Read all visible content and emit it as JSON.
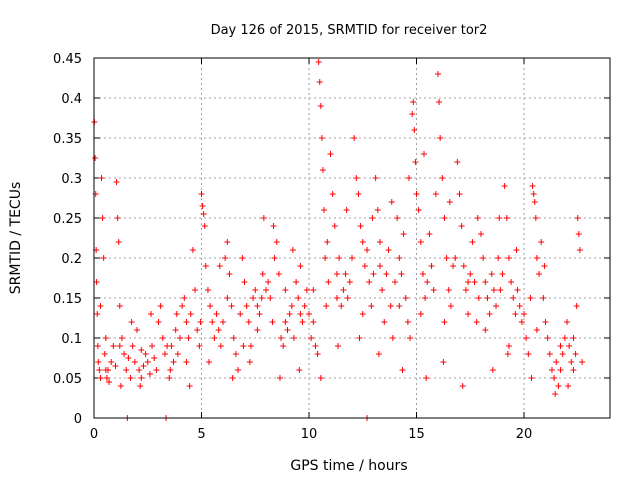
{
  "chart_data": {
    "type": "scatter",
    "title": "Day 126 of 2015, SRMTID for receiver tor2",
    "xlabel": "GPS time / hours",
    "ylabel": "SRMTID / TECUs",
    "xlim": [
      0,
      24
    ],
    "ylim": [
      0,
      0.45
    ],
    "x_ticks": [
      0,
      5,
      10,
      15,
      20
    ],
    "y_ticks": [
      0,
      0.05,
      0.1,
      0.15,
      0.2,
      0.25,
      0.3,
      0.35,
      0.4,
      0.45
    ],
    "grid": true,
    "marker": "+",
    "series_color": "#ff0000",
    "series": [
      {
        "name": "SRMTID",
        "points": [
          [
            0.02,
            0.37
          ],
          [
            0.05,
            0.325
          ],
          [
            0.08,
            0.28
          ],
          [
            0.1,
            0.21
          ],
          [
            0.12,
            0.17
          ],
          [
            0.15,
            0.13
          ],
          [
            0.18,
            0.09
          ],
          [
            0.2,
            0.07
          ],
          [
            0.25,
            0.06
          ],
          [
            0.3,
            0.05
          ],
          [
            0.35,
            0.3
          ],
          [
            0.4,
            0.25
          ],
          [
            0.45,
            0.2
          ],
          [
            0.5,
            0.08
          ],
          [
            0.55,
            0.06
          ],
          [
            0.6,
            0.05
          ],
          [
            0.7,
            0.045
          ],
          [
            0.8,
            0.07
          ],
          [
            0.9,
            0.09
          ],
          [
            1.0,
            0.065
          ],
          [
            1.05,
            0.295
          ],
          [
            1.1,
            0.25
          ],
          [
            1.15,
            0.22
          ],
          [
            1.2,
            0.14
          ],
          [
            1.3,
            0.1
          ],
          [
            1.4,
            0.08
          ],
          [
            1.5,
            0.06
          ],
          [
            1.6,
            0.075
          ],
          [
            1.7,
            0.05
          ],
          [
            1.8,
            0.09
          ],
          [
            1.9,
            0.07
          ],
          [
            2.0,
            0.11
          ],
          [
            2.1,
            0.06
          ],
          [
            2.2,
            0.085
          ],
          [
            2.3,
            0.065
          ],
          [
            2.4,
            0.08
          ],
          [
            2.5,
            0.07
          ],
          [
            2.6,
            0.055
          ],
          [
            2.7,
            0.09
          ],
          [
            2.8,
            0.075
          ],
          [
            2.9,
            0.06
          ],
          [
            3.0,
            0.12
          ],
          [
            3.1,
            0.14
          ],
          [
            3.2,
            0.1
          ],
          [
            3.3,
            0.08
          ],
          [
            3.5,
            0.05
          ],
          [
            3.6,
            0.09
          ],
          [
            3.7,
            0.07
          ],
          [
            3.8,
            0.11
          ],
          [
            3.9,
            0.08
          ],
          [
            4.0,
            0.1
          ],
          [
            4.1,
            0.14
          ],
          [
            4.2,
            0.15
          ],
          [
            4.3,
            0.12
          ],
          [
            4.4,
            0.1
          ],
          [
            4.5,
            0.13
          ],
          [
            4.6,
            0.21
          ],
          [
            4.7,
            0.16
          ],
          [
            4.8,
            0.11
          ],
          [
            4.9,
            0.09
          ],
          [
            5.0,
            0.28
          ],
          [
            5.05,
            0.265
          ],
          [
            5.1,
            0.255
          ],
          [
            5.15,
            0.24
          ],
          [
            5.2,
            0.19
          ],
          [
            5.3,
            0.16
          ],
          [
            5.4,
            0.14
          ],
          [
            5.5,
            0.12
          ],
          [
            5.6,
            0.1
          ],
          [
            5.7,
            0.13
          ],
          [
            5.8,
            0.11
          ],
          [
            5.9,
            0.09
          ],
          [
            6.0,
            0.12
          ],
          [
            6.1,
            0.2
          ],
          [
            6.2,
            0.22
          ],
          [
            6.3,
            0.18
          ],
          [
            6.4,
            0.14
          ],
          [
            6.5,
            0.1
          ],
          [
            6.6,
            0.08
          ],
          [
            6.7,
            0.06
          ],
          [
            6.8,
            0.13
          ],
          [
            6.9,
            0.2
          ],
          [
            7.0,
            0.17
          ],
          [
            7.1,
            0.14
          ],
          [
            7.2,
            0.12
          ],
          [
            7.3,
            0.09
          ],
          [
            7.4,
            0.15
          ],
          [
            7.5,
            0.16
          ],
          [
            7.6,
            0.14
          ],
          [
            7.7,
            0.13
          ],
          [
            7.8,
            0.15
          ],
          [
            7.9,
            0.25
          ],
          [
            8.0,
            0.16
          ],
          [
            8.1,
            0.17
          ],
          [
            8.2,
            0.15
          ],
          [
            8.3,
            0.12
          ],
          [
            8.4,
            0.2
          ],
          [
            8.5,
            0.22
          ],
          [
            8.6,
            0.18
          ],
          [
            8.7,
            0.1
          ],
          [
            8.8,
            0.09
          ],
          [
            8.9,
            0.12
          ],
          [
            9.0,
            0.11
          ],
          [
            9.1,
            0.13
          ],
          [
            9.2,
            0.14
          ],
          [
            9.3,
            0.1
          ],
          [
            9.4,
            0.17
          ],
          [
            9.5,
            0.15
          ],
          [
            9.6,
            0.13
          ],
          [
            9.7,
            0.12
          ],
          [
            9.8,
            0.14
          ],
          [
            9.9,
            0.16
          ],
          [
            10.0,
            0.13
          ],
          [
            10.1,
            0.1
          ],
          [
            10.2,
            0.12
          ],
          [
            10.3,
            0.09
          ],
          [
            10.4,
            0.08
          ],
          [
            10.45,
            0.445
          ],
          [
            10.5,
            0.42
          ],
          [
            10.55,
            0.39
          ],
          [
            10.6,
            0.35
          ],
          [
            10.65,
            0.31
          ],
          [
            10.7,
            0.26
          ],
          [
            10.75,
            0.2
          ],
          [
            10.8,
            0.14
          ],
          [
            10.9,
            0.17
          ],
          [
            11.0,
            0.33
          ],
          [
            11.1,
            0.28
          ],
          [
            11.2,
            0.24
          ],
          [
            11.3,
            0.18
          ],
          [
            11.4,
            0.2
          ],
          [
            11.5,
            0.14
          ],
          [
            11.6,
            0.16
          ],
          [
            11.7,
            0.18
          ],
          [
            11.8,
            0.15
          ],
          [
            11.9,
            0.17
          ],
          [
            12.0,
            0.2
          ],
          [
            12.1,
            0.35
          ],
          [
            12.2,
            0.3
          ],
          [
            12.3,
            0.28
          ],
          [
            12.4,
            0.24
          ],
          [
            12.5,
            0.22
          ],
          [
            12.6,
            0.19
          ],
          [
            12.7,
            0.21
          ],
          [
            12.8,
            0.17
          ],
          [
            12.9,
            0.14
          ],
          [
            13.0,
            0.18
          ],
          [
            13.1,
            0.3
          ],
          [
            13.2,
            0.26
          ],
          [
            13.3,
            0.22
          ],
          [
            13.4,
            0.16
          ],
          [
            13.5,
            0.12
          ],
          [
            13.6,
            0.18
          ],
          [
            13.7,
            0.21
          ],
          [
            13.8,
            0.14
          ],
          [
            13.9,
            0.1
          ],
          [
            14.0,
            0.17
          ],
          [
            14.1,
            0.25
          ],
          [
            14.2,
            0.2
          ],
          [
            14.3,
            0.18
          ],
          [
            14.4,
            0.23
          ],
          [
            14.5,
            0.15
          ],
          [
            14.6,
            0.12
          ],
          [
            14.7,
            0.1
          ],
          [
            14.8,
            0.38
          ],
          [
            14.85,
            0.395
          ],
          [
            14.9,
            0.36
          ],
          [
            14.95,
            0.32
          ],
          [
            15.0,
            0.28
          ],
          [
            15.1,
            0.26
          ],
          [
            15.2,
            0.22
          ],
          [
            15.3,
            0.18
          ],
          [
            15.4,
            0.15
          ],
          [
            15.5,
            0.17
          ],
          [
            15.6,
            0.23
          ],
          [
            15.7,
            0.19
          ],
          [
            15.8,
            0.16
          ],
          [
            15.9,
            0.28
          ],
          [
            16.0,
            0.43
          ],
          [
            16.05,
            0.395
          ],
          [
            16.1,
            0.35
          ],
          [
            16.2,
            0.3
          ],
          [
            16.3,
            0.25
          ],
          [
            16.4,
            0.2
          ],
          [
            16.5,
            0.16
          ],
          [
            16.6,
            0.14
          ],
          [
            16.7,
            0.19
          ],
          [
            16.8,
            0.2
          ],
          [
            16.9,
            0.32
          ],
          [
            17.0,
            0.28
          ],
          [
            17.1,
            0.24
          ],
          [
            17.2,
            0.19
          ],
          [
            17.3,
            0.16
          ],
          [
            17.4,
            0.13
          ],
          [
            17.5,
            0.18
          ],
          [
            17.6,
            0.22
          ],
          [
            17.7,
            0.17
          ],
          [
            17.8,
            0.12
          ],
          [
            17.9,
            0.15
          ],
          [
            18.0,
            0.23
          ],
          [
            18.1,
            0.2
          ],
          [
            18.2,
            0.17
          ],
          [
            18.3,
            0.15
          ],
          [
            18.4,
            0.13
          ],
          [
            18.5,
            0.18
          ],
          [
            18.6,
            0.16
          ],
          [
            18.7,
            0.14
          ],
          [
            18.8,
            0.2
          ],
          [
            18.9,
            0.16
          ],
          [
            19.0,
            0.18
          ],
          [
            19.1,
            0.29
          ],
          [
            19.2,
            0.25
          ],
          [
            19.3,
            0.2
          ],
          [
            19.4,
            0.17
          ],
          [
            19.5,
            0.15
          ],
          [
            19.6,
            0.13
          ],
          [
            19.7,
            0.16
          ],
          [
            19.8,
            0.14
          ],
          [
            19.9,
            0.12
          ],
          [
            20.0,
            0.13
          ],
          [
            20.1,
            0.1
          ],
          [
            20.2,
            0.08
          ],
          [
            20.3,
            0.15
          ],
          [
            20.4,
            0.29
          ],
          [
            20.45,
            0.28
          ],
          [
            20.5,
            0.27
          ],
          [
            20.55,
            0.25
          ],
          [
            20.6,
            0.2
          ],
          [
            20.7,
            0.18
          ],
          [
            20.8,
            0.22
          ],
          [
            20.9,
            0.15
          ],
          [
            21.0,
            0.12
          ],
          [
            21.1,
            0.1
          ],
          [
            21.2,
            0.08
          ],
          [
            21.3,
            0.06
          ],
          [
            21.4,
            0.05
          ],
          [
            21.5,
            0.07
          ],
          [
            21.6,
            0.04
          ],
          [
            21.7,
            0.06
          ],
          [
            21.8,
            0.08
          ],
          [
            21.9,
            0.1
          ],
          [
            22.0,
            0.12
          ],
          [
            22.1,
            0.09
          ],
          [
            22.2,
            0.07
          ],
          [
            22.3,
            0.1
          ],
          [
            22.4,
            0.08
          ],
          [
            22.5,
            0.25
          ],
          [
            22.55,
            0.23
          ],
          [
            22.6,
            0.21
          ],
          [
            22.7,
            0.07
          ],
          [
            0.3,
            0.14
          ],
          [
            1.2,
            0.09
          ],
          [
            2.2,
            0.05
          ],
          [
            3.4,
            0.09
          ],
          [
            4.3,
            0.07
          ],
          [
            6.2,
            0.15
          ],
          [
            7.6,
            0.11
          ],
          [
            8.9,
            0.16
          ],
          [
            9.6,
            0.19
          ],
          [
            10.2,
            0.16
          ],
          [
            11.3,
            0.15
          ],
          [
            12.5,
            0.13
          ],
          [
            13.3,
            0.19
          ],
          [
            14.2,
            0.14
          ],
          [
            15.2,
            0.13
          ],
          [
            16.3,
            0.12
          ],
          [
            17.4,
            0.17
          ],
          [
            18.2,
            0.11
          ],
          [
            19.3,
            0.09
          ],
          [
            20.6,
            0.11
          ],
          [
            21.7,
            0.09
          ],
          [
            22.3,
            0.06
          ],
          [
            1.55,
            0.0
          ],
          [
            3.35,
            0.0
          ],
          [
            12.7,
            0.0
          ],
          [
            0.65,
            0.06
          ],
          [
            1.25,
            0.04
          ],
          [
            2.15,
            0.04
          ],
          [
            3.55,
            0.06
          ],
          [
            4.45,
            0.04
          ],
          [
            5.35,
            0.07
          ],
          [
            6.45,
            0.05
          ],
          [
            7.25,
            0.07
          ],
          [
            8.65,
            0.05
          ],
          [
            9.55,
            0.06
          ],
          [
            10.55,
            0.05
          ],
          [
            11.35,
            0.09
          ],
          [
            12.35,
            0.1
          ],
          [
            13.25,
            0.08
          ],
          [
            14.35,
            0.06
          ],
          [
            15.45,
            0.05
          ],
          [
            16.25,
            0.07
          ],
          [
            17.15,
            0.04
          ],
          [
            18.55,
            0.06
          ],
          [
            19.25,
            0.08
          ],
          [
            20.35,
            0.05
          ],
          [
            21.45,
            0.03
          ],
          [
            22.05,
            0.04
          ],
          [
            0.55,
            0.1
          ],
          [
            1.75,
            0.12
          ],
          [
            2.65,
            0.13
          ],
          [
            3.85,
            0.13
          ],
          [
            4.95,
            0.12
          ],
          [
            5.85,
            0.19
          ],
          [
            6.95,
            0.09
          ],
          [
            7.85,
            0.18
          ],
          [
            8.35,
            0.24
          ],
          [
            9.25,
            0.21
          ],
          [
            10.85,
            0.22
          ],
          [
            11.75,
            0.26
          ],
          [
            12.95,
            0.25
          ],
          [
            13.85,
            0.27
          ],
          [
            14.65,
            0.3
          ],
          [
            15.35,
            0.33
          ],
          [
            16.55,
            0.27
          ],
          [
            17.85,
            0.25
          ],
          [
            18.85,
            0.25
          ],
          [
            19.65,
            0.21
          ],
          [
            20.95,
            0.19
          ],
          [
            22.45,
            0.14
          ]
        ]
      }
    ]
  }
}
